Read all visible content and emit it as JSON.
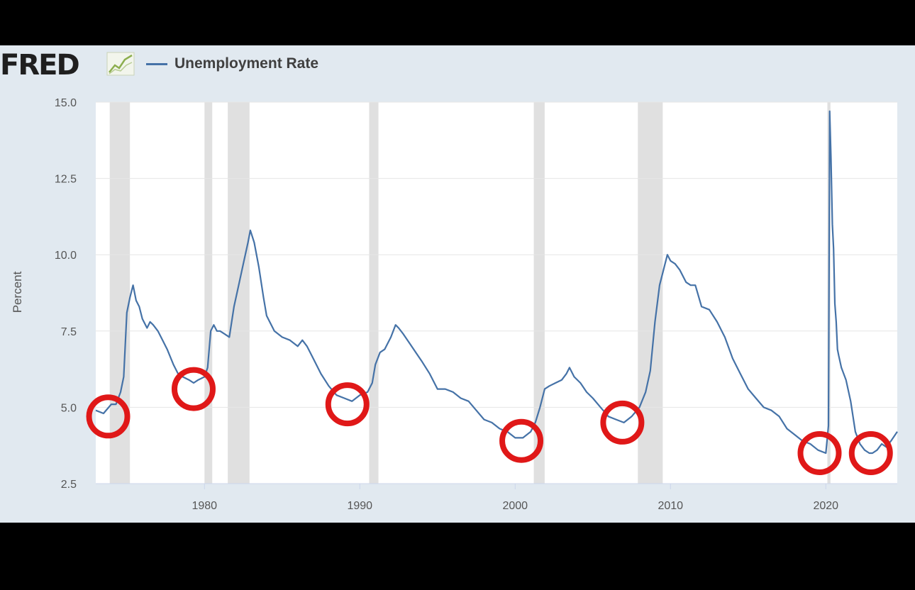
{
  "header": {
    "logo_text": "FRED",
    "logo_icon": "line-chart-icon",
    "legend_label": "Unemployment Rate"
  },
  "colors": {
    "series": "#4572a7",
    "recession_band": "#e0e0e0",
    "plot_bg": "#ffffff",
    "panel_bg": "#e1e9f0",
    "highlight_circle": "#e01818"
  },
  "chart_data": {
    "type": "line",
    "ylabel": "Percent",
    "xlabel": "",
    "ylim": [
      2.5,
      15.0
    ],
    "xlim": [
      1973.0,
      2024.6
    ],
    "yticks": [
      2.5,
      5.0,
      7.5,
      10.0,
      12.5,
      15.0
    ],
    "ytick_labels": [
      "2.5",
      "5.0",
      "7.5",
      "10.0",
      "12.5",
      "15.0"
    ],
    "xticks": [
      1980,
      1990,
      2000,
      2010,
      2020
    ],
    "xtick_labels": [
      "1980",
      "1990",
      "2000",
      "2010",
      "2020"
    ],
    "grid": true,
    "recessions": [
      [
        1973.9,
        1975.2
      ],
      [
        1980.0,
        1980.5
      ],
      [
        1981.5,
        1982.9
      ],
      [
        1990.6,
        1991.2
      ],
      [
        2001.2,
        2001.9
      ],
      [
        2007.9,
        2009.5
      ],
      [
        2020.1,
        2020.3
      ]
    ],
    "series": [
      {
        "name": "Unemployment Rate",
        "x": [
          1973.0,
          1973.5,
          1974.0,
          1974.3,
          1974.6,
          1974.8,
          1975.0,
          1975.2,
          1975.4,
          1975.6,
          1975.8,
          1976.0,
          1976.3,
          1976.5,
          1976.7,
          1977.0,
          1977.3,
          1977.6,
          1978.0,
          1978.3,
          1978.6,
          1979.0,
          1979.3,
          1979.6,
          1980.0,
          1980.2,
          1980.4,
          1980.6,
          1980.8,
          1981.0,
          1981.3,
          1981.6,
          1981.9,
          1982.2,
          1982.5,
          1982.8,
          1982.95,
          1983.2,
          1983.5,
          1983.8,
          1984.0,
          1984.5,
          1985.0,
          1985.5,
          1986.0,
          1986.3,
          1986.6,
          1987.0,
          1987.5,
          1988.0,
          1988.5,
          1989.0,
          1989.5,
          1990.0,
          1990.5,
          1990.8,
          1991.0,
          1991.3,
          1991.6,
          1992.0,
          1992.3,
          1992.5,
          1992.8,
          1993.2,
          1993.6,
          1994.0,
          1994.5,
          1995.0,
          1995.5,
          1996.0,
          1996.5,
          1997.0,
          1997.5,
          1998.0,
          1998.5,
          1999.0,
          1999.5,
          2000.0,
          2000.5,
          2001.0,
          2001.3,
          2001.6,
          2001.9,
          2002.2,
          2002.6,
          2003.0,
          2003.3,
          2003.5,
          2003.8,
          2004.2,
          2004.6,
          2005.0,
          2005.5,
          2006.0,
          2006.5,
          2007.0,
          2007.5,
          2008.0,
          2008.4,
          2008.7,
          2009.0,
          2009.3,
          2009.6,
          2009.8,
          2010.0,
          2010.3,
          2010.6,
          2011.0,
          2011.3,
          2011.6,
          2012.0,
          2012.5,
          2013.0,
          2013.5,
          2014.0,
          2014.5,
          2015.0,
          2015.5,
          2016.0,
          2016.5,
          2017.0,
          2017.5,
          2018.0,
          2018.5,
          2019.0,
          2019.5,
          2020.0,
          2020.17,
          2020.25,
          2020.33,
          2020.42,
          2020.5,
          2020.58,
          2020.67,
          2020.75,
          2020.83,
          2021.0,
          2021.3,
          2021.6,
          2021.9,
          2022.2,
          2022.5,
          2022.8,
          2023.0,
          2023.3,
          2023.6,
          2023.9,
          2024.2,
          2024.6
        ],
        "values": [
          4.9,
          4.8,
          5.1,
          5.1,
          5.5,
          6.0,
          8.1,
          8.6,
          9.0,
          8.5,
          8.3,
          7.9,
          7.6,
          7.8,
          7.7,
          7.5,
          7.2,
          6.9,
          6.4,
          6.1,
          6.0,
          5.9,
          5.8,
          5.9,
          6.0,
          6.3,
          7.5,
          7.7,
          7.5,
          7.5,
          7.4,
          7.3,
          8.3,
          9.0,
          9.7,
          10.4,
          10.8,
          10.4,
          9.6,
          8.6,
          8.0,
          7.5,
          7.3,
          7.2,
          7.0,
          7.2,
          7.0,
          6.6,
          6.1,
          5.7,
          5.4,
          5.3,
          5.2,
          5.4,
          5.5,
          5.8,
          6.4,
          6.8,
          6.9,
          7.3,
          7.7,
          7.6,
          7.4,
          7.1,
          6.8,
          6.5,
          6.1,
          5.6,
          5.6,
          5.5,
          5.3,
          5.2,
          4.9,
          4.6,
          4.5,
          4.3,
          4.2,
          4.0,
          4.0,
          4.2,
          4.5,
          5.0,
          5.6,
          5.7,
          5.8,
          5.9,
          6.1,
          6.3,
          6.0,
          5.8,
          5.5,
          5.3,
          5.0,
          4.7,
          4.6,
          4.5,
          4.7,
          5.0,
          5.5,
          6.2,
          7.8,
          9.0,
          9.6,
          10.0,
          9.8,
          9.7,
          9.5,
          9.1,
          9.0,
          9.0,
          8.3,
          8.2,
          7.8,
          7.3,
          6.6,
          6.1,
          5.6,
          5.3,
          5.0,
          4.9,
          4.7,
          4.3,
          4.1,
          3.9,
          3.8,
          3.6,
          3.5,
          4.4,
          14.7,
          13.2,
          11.0,
          10.2,
          8.4,
          7.8,
          6.9,
          6.7,
          6.3,
          5.9,
          5.2,
          4.2,
          3.8,
          3.6,
          3.5,
          3.5,
          3.6,
          3.8,
          3.7,
          3.9,
          4.2
        ]
      }
    ],
    "annotations": [
      {
        "type": "circle",
        "x": 1973.8,
        "y": 4.7
      },
      {
        "type": "circle",
        "x": 1979.3,
        "y": 5.6
      },
      {
        "type": "circle",
        "x": 1989.2,
        "y": 5.1
      },
      {
        "type": "circle",
        "x": 2000.4,
        "y": 3.9
      },
      {
        "type": "circle",
        "x": 2006.9,
        "y": 4.5
      },
      {
        "type": "circle",
        "x": 2019.6,
        "y": 3.5
      },
      {
        "type": "circle",
        "x": 2022.9,
        "y": 3.5
      }
    ]
  }
}
